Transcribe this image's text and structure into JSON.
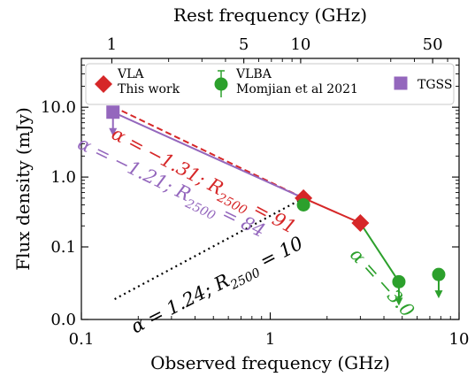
{
  "chart_data": {
    "type": "scatter",
    "xscale": "log",
    "yscale": "symlog",
    "xlim": [
      0.1,
      10
    ],
    "ylim": [
      0,
      50
    ],
    "xlabel": "Observed frequency (GHz)",
    "ylabel": "Flux density (mJy)",
    "top_xlabel": "Rest frequency (GHz)",
    "x_ticks": [
      {
        "value": 0.1,
        "label": "0.1"
      },
      {
        "value": 1,
        "label": "1"
      },
      {
        "value": 10,
        "label": "10"
      }
    ],
    "y_ticks": [
      {
        "value": 0,
        "label": "0.0"
      },
      {
        "value": 0.1,
        "label": "0.1"
      },
      {
        "value": 1,
        "label": "1.0"
      },
      {
        "value": 10,
        "label": "10.0"
      }
    ],
    "top_ticks": [
      {
        "value": 1,
        "label": "1"
      },
      {
        "value": 5,
        "label": "5"
      },
      {
        "value": 10,
        "label": "10"
      },
      {
        "value": 50,
        "label": "50"
      }
    ],
    "rest_frequency_factor": 6.9,
    "grid": false,
    "legend_position": "top",
    "series": [
      {
        "name": "VLA\nThis work",
        "marker": "diamond",
        "color": "#d62728",
        "points": [
          {
            "x": 1.5,
            "y": 0.5
          },
          {
            "x": 3.0,
            "y": 0.22
          }
        ]
      },
      {
        "name": "VLBA\nMomjian et al 2021",
        "marker": "circle",
        "color": "#2ca02c",
        "points": [
          {
            "x": 1.5,
            "y": 0.4
          },
          {
            "x": 4.8,
            "y": 0.052,
            "upper_limit": true
          },
          {
            "x": 7.8,
            "y": 0.062,
            "upper_limit": true
          }
        ]
      },
      {
        "name": "TGSS",
        "marker": "square",
        "color": "#9467bd",
        "points": [
          {
            "x": 0.147,
            "y": 8.5,
            "upper_limit": true
          }
        ]
      }
    ],
    "fit_lines": [
      {
        "label": "α = −1.31; R2500 = 91",
        "color": "#d62728",
        "style": "dashed",
        "from": [
          0.147,
          10.2
        ],
        "to": [
          1.5,
          0.5
        ]
      },
      {
        "label": "α = −1.21; R2500 = 84",
        "color": "#9467bd",
        "style": "solid",
        "from": [
          0.147,
          8.5
        ],
        "to": [
          1.5,
          0.5
        ]
      },
      {
        "label": "α = 1.24; R2500 = 10",
        "color": "#000000",
        "style": "dotted",
        "from": [
          0.15,
          0.028
        ],
        "to": [
          1.5,
          0.5
        ]
      },
      {
        "label": "α = −3.0",
        "color": "#2ca02c",
        "style": "solid",
        "from": [
          3.0,
          0.22
        ],
        "to": [
          4.8,
          0.052
        ]
      },
      {
        "label": "",
        "color": "#d62728",
        "style": "solid",
        "from": [
          1.5,
          0.5
        ],
        "to": [
          3.0,
          0.22
        ]
      }
    ],
    "annotations": [
      {
        "text": "α = −1.31; R2500 = 91",
        "color": "#d62728",
        "x": 0.43,
        "y": 0.75,
        "angle": 28
      },
      {
        "text": "α = −1.21; R2500 = 84",
        "color": "#9467bd",
        "x": 0.29,
        "y": 0.6,
        "angle": 26
      },
      {
        "text": "α = 1.24; R2500 = 10",
        "color": "#000000",
        "x": 0.54,
        "y": 0.04,
        "angle": -27
      },
      {
        "text": "α = −3.0",
        "color": "#2ca02c",
        "x": 3.7,
        "y": 0.045,
        "angle": 48
      }
    ]
  }
}
